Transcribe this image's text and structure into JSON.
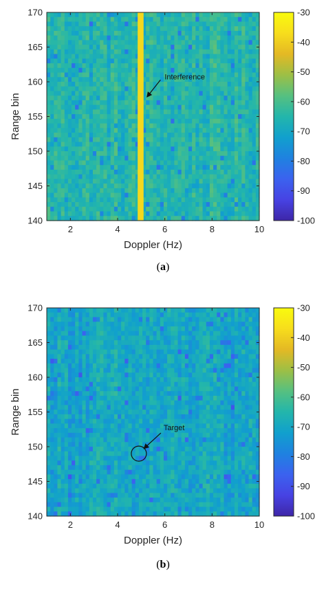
{
  "colors": {
    "background": "#ffffff",
    "axis": "#262626"
  },
  "colormap": [
    "#3e26a8",
    "#4743e3",
    "#3b62ef",
    "#1f82e0",
    "#11a0cd",
    "#23b6ab",
    "#56c080",
    "#9dbf45",
    "#e4b924",
    "#f7dd1c",
    "#f9fb0e"
  ],
  "chart_data": [
    {
      "type": "heatmap",
      "panel_label": "a",
      "xlabel": "Doppler (Hz)",
      "ylabel": "Range bin",
      "xlim": [
        1,
        10
      ],
      "ylim": [
        140,
        170
      ],
      "xticks": [
        "2",
        "4",
        "6",
        "8",
        "10"
      ],
      "yticks": [
        "140",
        "145",
        "150",
        "155",
        "160",
        "165",
        "170"
      ],
      "colorbar": {
        "min": -100,
        "max": -30,
        "ticks": [
          "-30",
          "-40",
          "-50",
          "-60",
          "-70",
          "-80",
          "-90",
          "-100"
        ]
      },
      "background_level": -65,
      "features": [
        {
          "kind": "vertical_line",
          "x_from": 4.85,
          "x_to": 5.1,
          "level": -38
        }
      ],
      "annotation": {
        "text": "Interference",
        "x": 5.0,
        "y": 157.5
      }
    },
    {
      "type": "heatmap",
      "panel_label": "b",
      "xlabel": "Doppler (Hz)",
      "ylabel": "Range bin",
      "xlim": [
        1,
        10
      ],
      "ylim": [
        140,
        170
      ],
      "xticks": [
        "2",
        "4",
        "6",
        "8",
        "10"
      ],
      "yticks": [
        "140",
        "145",
        "150",
        "155",
        "160",
        "165",
        "170"
      ],
      "colorbar": {
        "min": -100,
        "max": -30,
        "ticks": [
          "-30",
          "-40",
          "-50",
          "-60",
          "-70",
          "-80",
          "-90",
          "-100"
        ]
      },
      "background_level": -70,
      "features": [],
      "annotation": {
        "text": "Target",
        "x": 4.9,
        "y": 149,
        "circle": true
      }
    }
  ]
}
